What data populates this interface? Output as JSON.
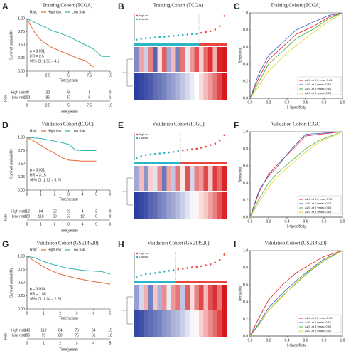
{
  "chart_data": [
    {
      "type": "survival",
      "label": "A",
      "title": "Training Cohort (TCGA)",
      "legend_title": "Risk",
      "xlabel": "Time(years)",
      "ylabel": "Survival probability",
      "annotations": [
        "p < 0.001",
        "HR = 2.5",
        "95% CI: 1.53 – 4.1"
      ],
      "xlim": [
        0,
        10
      ],
      "xticks": [
        0,
        2.5,
        5,
        7.5,
        10
      ],
      "ylim": [
        0,
        1
      ],
      "yticks": [
        {
          "value": 0,
          "label": "0.00"
        },
        {
          "value": 0.25,
          "label": "0.25"
        },
        {
          "value": 0.5,
          "label": "0.50"
        },
        {
          "value": 0.75,
          "label": "0.75"
        },
        {
          "value": 1,
          "label": "1.00"
        }
      ],
      "table_title": "Risk",
      "series": [
        {
          "name": "High risk",
          "color": "#e8663c",
          "x": [
            0,
            0.5,
            1,
            1.5,
            2,
            2.5,
            3,
            4,
            5,
            6,
            7,
            8
          ],
          "values": [
            1,
            0.85,
            0.72,
            0.62,
            0.55,
            0.5,
            0.45,
            0.38,
            0.32,
            0.25,
            0.2,
            0.08
          ],
          "at_risk": [
            88,
            32,
            9,
            1,
            0
          ]
        },
        {
          "name": "Low risk",
          "color": "#2bb5b0",
          "x": [
            0,
            1,
            2,
            3,
            4,
            5,
            6,
            7,
            8,
            9,
            10
          ],
          "values": [
            1,
            0.92,
            0.85,
            0.77,
            0.72,
            0.66,
            0.58,
            0.5,
            0.42,
            0.28,
            0.28
          ],
          "at_risk": [
            202,
            86,
            27,
            6,
            1
          ]
        }
      ]
    },
    {
      "type": "risk-heatmap",
      "label": "B",
      "title": "Training Cohort (TCGA)",
      "ylim": [
        0,
        3.2
      ],
      "zlim": [
        -2,
        2
      ],
      "series": [
        {
          "name": "High risk",
          "color": "#e8463c",
          "x": [
            15,
            16,
            17,
            18,
            19,
            20
          ],
          "values": [
            1.0,
            1.1,
            1.2,
            1.4,
            1.8,
            3.0
          ]
        },
        {
          "name": "Low risk",
          "color": "#2bb5c8",
          "x": [
            1,
            2,
            3,
            4,
            5,
            6,
            7,
            8,
            9,
            10,
            11,
            12,
            13,
            14
          ],
          "values": [
            0.2,
            0.3,
            0.35,
            0.4,
            0.45,
            0.5,
            0.55,
            0.6,
            0.65,
            0.7,
            0.75,
            0.8,
            0.85,
            0.9
          ]
        }
      ],
      "heatmap": [
        [
          -1.2,
          0.8,
          -0.5,
          1.1,
          -1.6,
          0.3,
          1.4,
          -0.9,
          0.6,
          -1.3,
          1.2,
          -0.2,
          0.9,
          1.5,
          0.4,
          1.3,
          1.8,
          0.7,
          1.9,
          2.0
        ],
        [
          -2.0,
          -1.9,
          -1.8,
          -1.7,
          -1.5,
          -1.4,
          -1.3,
          -1.1,
          -1.0,
          -0.8,
          -0.6,
          -0.4,
          -0.2,
          0.0,
          0.3,
          0.6,
          0.9,
          1.2,
          1.6,
          2.0
        ]
      ]
    },
    {
      "type": "roc",
      "label": "C",
      "title": "Training Cohort (TCGA)",
      "xlabel": "1-Specificity",
      "ylabel": "Sensitivity",
      "xlim": [
        0,
        1
      ],
      "xticks": [
        {
          "value": 0,
          "label": "0.0"
        },
        0.2,
        0.4,
        0.6,
        0.8,
        {
          "value": 1,
          "label": "1.0"
        }
      ],
      "ylim": [
        0,
        1
      ],
      "yticks": [
        {
          "value": 0,
          "label": "0.0"
        },
        0.2,
        0.4,
        0.6,
        0.8,
        {
          "value": 1,
          "label": "1.0"
        }
      ],
      "series": [
        {
          "name": "AUC at 0.5 year: 0.66",
          "color": "#e41a1c",
          "x": [
            0,
            0.1,
            0.2,
            0.35,
            0.5,
            0.7,
            0.85,
            1
          ],
          "values": [
            0,
            0.25,
            0.45,
            0.6,
            0.75,
            0.85,
            0.95,
            1
          ]
        },
        {
          "name": "AUC at 1 years: 0.69",
          "color": "#3b5bc8",
          "x": [
            0,
            0.1,
            0.2,
            0.35,
            0.5,
            0.7,
            0.85,
            1
          ],
          "values": [
            0,
            0.3,
            0.5,
            0.65,
            0.8,
            0.9,
            0.97,
            1
          ]
        },
        {
          "name": "AUC at 3 years: 0.64",
          "color": "#4daf4a",
          "x": [
            0,
            0.1,
            0.2,
            0.35,
            0.5,
            0.7,
            0.85,
            1
          ],
          "values": [
            0,
            0.2,
            0.4,
            0.55,
            0.7,
            0.82,
            0.93,
            1
          ]
        },
        {
          "name": "AUC at 5 years: 0.59",
          "color": "#e6d52a",
          "x": [
            0,
            0.1,
            0.2,
            0.35,
            0.5,
            0.7,
            0.85,
            1
          ],
          "values": [
            0,
            0.15,
            0.32,
            0.48,
            0.62,
            0.78,
            0.9,
            1
          ]
        }
      ]
    },
    {
      "type": "survival",
      "label": "D",
      "title": "Validation Cohort (ICGC)",
      "legend_title": "Risk",
      "xlabel": "Time(years)",
      "ylabel": "Survival probability",
      "annotations": [
        "p < 0.001",
        "HR = 3.15",
        "95% CI: 1.72 – 5.76"
      ],
      "xlim": [
        0,
        6
      ],
      "xticks": [
        0,
        1,
        2,
        3,
        4,
        5,
        6
      ],
      "ylim": [
        0,
        1
      ],
      "yticks": [
        {
          "value": 0,
          "label": "0.00"
        },
        {
          "value": 0.25,
          "label": "0.25"
        },
        {
          "value": 0.5,
          "label": "0.50"
        },
        {
          "value": 0.75,
          "label": "0.75"
        },
        {
          "value": 1,
          "label": "1.00"
        }
      ],
      "table_title": "Risk",
      "series": [
        {
          "name": "High risk",
          "color": "#e8663c",
          "x": [
            0,
            0.5,
            1,
            1.5,
            2,
            2.5,
            3,
            4,
            5
          ],
          "values": [
            1,
            0.93,
            0.85,
            0.77,
            0.7,
            0.62,
            0.57,
            0.55,
            0.55
          ],
          "at_risk": [
            112,
            84,
            52,
            23,
            4,
            2,
            0
          ]
        },
        {
          "name": "Low risk",
          "color": "#2bb5b0",
          "x": [
            0,
            1,
            2,
            3,
            3.5,
            4,
            5
          ],
          "values": [
            1,
            0.98,
            0.93,
            0.87,
            0.76,
            0.75,
            0.75
          ],
          "at_risk": [
            120,
            118,
            89,
            53,
            12,
            0,
            0
          ]
        }
      ]
    },
    {
      "type": "risk-heatmap",
      "label": "E",
      "title": "Validation Cohort (ICGC)",
      "ylim": [
        0,
        2.6
      ],
      "zlim": [
        -2,
        2
      ],
      "series": [
        {
          "name": "High risk",
          "color": "#e8463c",
          "x": [
            11,
            12,
            13,
            14,
            15,
            16,
            17,
            18,
            19,
            20
          ],
          "values": [
            0.95,
            1.0,
            1.05,
            1.1,
            1.2,
            1.3,
            1.45,
            1.6,
            1.9,
            2.4
          ]
        },
        {
          "name": "Low risk",
          "color": "#2bb5c8",
          "x": [
            1,
            2,
            3,
            4,
            5,
            6,
            7,
            8,
            9,
            10
          ],
          "values": [
            0.2,
            0.4,
            0.5,
            0.55,
            0.6,
            0.65,
            0.7,
            0.75,
            0.8,
            0.88
          ]
        }
      ],
      "heatmap": [
        [
          -0.9,
          0.6,
          -1.1,
          0.4,
          -0.3,
          1.0,
          -1.4,
          0.8,
          -0.6,
          1.2,
          0.2,
          1.5,
          -0.4,
          1.1,
          0.9,
          1.6,
          0.5,
          1.7,
          1.3,
          1.9
        ],
        [
          -2.0,
          -1.9,
          -1.8,
          -1.6,
          -1.5,
          -1.3,
          -1.2,
          -1.0,
          -0.9,
          -0.7,
          -0.5,
          -0.3,
          -0.1,
          0.1,
          0.3,
          0.5,
          0.8,
          1.1,
          1.5,
          1.9
        ]
      ]
    },
    {
      "type": "roc",
      "label": "F",
      "title": "Validation Cohort   ICGC",
      "xlabel": "1-Specificity",
      "ylabel": "Sensitivity",
      "xlim": [
        0,
        1
      ],
      "xticks": [
        {
          "value": 0,
          "label": "0.0"
        },
        0.2,
        0.4,
        0.6,
        0.8,
        {
          "value": 1,
          "label": "1.0"
        }
      ],
      "ylim": [
        0,
        1
      ],
      "yticks": [
        {
          "value": 0,
          "label": "0.0"
        },
        0.2,
        0.4,
        0.6,
        0.8,
        {
          "value": 1,
          "label": "1.0"
        }
      ],
      "series": [
        {
          "name": "AUC at 0.5 year: 0.72",
          "color": "#e41a1c",
          "x": [
            0,
            0.1,
            0.2,
            0.3,
            0.45,
            0.6,
            0.75,
            1
          ],
          "values": [
            0,
            0.3,
            0.5,
            0.62,
            0.78,
            0.95,
            0.97,
            1
          ]
        },
        {
          "name": "AUC at 1 years: 0.72",
          "color": "#3b5bc8",
          "x": [
            0,
            0.1,
            0.2,
            0.3,
            0.45,
            0.6,
            0.75,
            1
          ],
          "values": [
            0,
            0.32,
            0.48,
            0.6,
            0.8,
            0.97,
            0.98,
            1
          ]
        },
        {
          "name": "AUC at 3 years: 0.65",
          "color": "#4daf4a",
          "x": [
            0,
            0.1,
            0.2,
            0.3,
            0.45,
            0.6,
            0.75,
            1
          ],
          "values": [
            0,
            0.22,
            0.4,
            0.52,
            0.66,
            0.8,
            0.9,
            1
          ]
        },
        {
          "name": "AUC at 5 years: 0.63",
          "color": "#e6d52a",
          "x": [
            0,
            0.1,
            0.2,
            0.3,
            0.45,
            0.6,
            0.75,
            1
          ],
          "values": [
            0,
            0.18,
            0.35,
            0.48,
            0.62,
            0.76,
            0.88,
            1
          ]
        }
      ]
    },
    {
      "type": "survival",
      "label": "G",
      "title": "Validation Cohort (GSE14520)",
      "legend_title": "Risk",
      "xlabel": "Time(years)",
      "ylabel": "Survival probability",
      "annotations": [
        "p = 0.004",
        "HR = 1.85",
        "95% CI: 1.24 – 2.76"
      ],
      "xlim": [
        0,
        5
      ],
      "xticks": [
        0,
        1,
        2,
        3,
        4,
        5
      ],
      "ylim": [
        0,
        1
      ],
      "yticks": [
        {
          "value": 0,
          "label": "0.00"
        },
        {
          "value": 0.25,
          "label": "0.25"
        },
        {
          "value": 0.5,
          "label": "0.50"
        },
        {
          "value": 0.75,
          "label": "0.75"
        },
        {
          "value": 1,
          "label": "1.00"
        }
      ],
      "table_title": "Risk",
      "series": [
        {
          "name": "High risk",
          "color": "#e8663c",
          "x": [
            0,
            0.5,
            1,
            1.5,
            2,
            2.5,
            3,
            3.5,
            4,
            4.5,
            5
          ],
          "values": [
            1,
            0.9,
            0.8,
            0.72,
            0.66,
            0.62,
            0.58,
            0.55,
            0.52,
            0.5,
            0.47
          ],
          "at_risk": [
            143,
            110,
            84,
            76,
            64,
            15
          ]
        },
        {
          "name": "Low risk",
          "color": "#2bb5b0",
          "x": [
            0,
            0.5,
            1,
            1.5,
            2,
            2.5,
            3,
            3.5,
            4,
            4.5,
            5
          ],
          "values": [
            1,
            0.97,
            0.9,
            0.85,
            0.81,
            0.77,
            0.75,
            0.73,
            0.72,
            0.71,
            0.66
          ],
          "at_risk": [
            106,
            99,
            80,
            75,
            61,
            18
          ]
        }
      ]
    },
    {
      "type": "risk-heatmap",
      "label": "H",
      "title": "Validation Cohort (GSE14520)",
      "ylim": [
        0,
        2.2
      ],
      "zlim": [
        -2,
        2
      ],
      "series": [
        {
          "name": "High risk",
          "color": "#e8463c",
          "x": [
            10,
            11,
            12,
            13,
            14,
            15,
            16,
            17,
            18,
            19,
            20
          ],
          "values": [
            0.8,
            0.85,
            0.9,
            0.95,
            1.0,
            1.05,
            1.12,
            1.2,
            1.35,
            1.55,
            2.0
          ]
        },
        {
          "name": "Low risk",
          "color": "#2bb5c8",
          "x": [
            1,
            2,
            3,
            4,
            5,
            6,
            7,
            8,
            9
          ],
          "values": [
            0.15,
            0.3,
            0.4,
            0.45,
            0.5,
            0.55,
            0.62,
            0.68,
            0.74
          ]
        }
      ],
      "heatmap": [
        [
          -1.0,
          -0.4,
          0.7,
          -1.3,
          0.5,
          -0.8,
          1.0,
          -0.2,
          0.9,
          1.2,
          -0.6,
          1.4,
          0.3,
          1.1,
          1.6,
          0.6,
          1.5,
          1.8,
          1.2,
          2.0
        ],
        [
          -1.9,
          -1.8,
          -1.6,
          -1.5,
          -1.4,
          -1.3,
          -1.1,
          -1.0,
          -0.8,
          -0.7,
          -0.5,
          -0.3,
          -0.1,
          0.1,
          0.4,
          0.7,
          1.0,
          1.3,
          1.6,
          2.0
        ]
      ]
    },
    {
      "type": "roc",
      "label": "I",
      "title": "Validation Cohort (GSE14520)",
      "xlabel": "1-Specificity",
      "ylabel": "Sensitivity",
      "xlim": [
        0,
        1
      ],
      "xticks": [
        {
          "value": 0,
          "label": "0.0"
        },
        0.2,
        0.4,
        0.6,
        0.8,
        {
          "value": 1,
          "label": "1.0"
        }
      ],
      "ylim": [
        0,
        1
      ],
      "yticks": [
        {
          "value": 0,
          "label": "0.0"
        },
        0.2,
        0.4,
        0.6,
        0.8,
        {
          "value": 1,
          "label": "1.0"
        }
      ],
      "series": [
        {
          "name": "AUC at 0.5 year: 0.66",
          "color": "#e41a1c",
          "x": [
            0,
            0.1,
            0.2,
            0.35,
            0.5,
            0.65,
            0.8,
            1
          ],
          "values": [
            0,
            0.22,
            0.42,
            0.6,
            0.74,
            0.84,
            0.93,
            1
          ]
        },
        {
          "name": "AUC at 1 years: 0.61",
          "color": "#3b5bc8",
          "x": [
            0,
            0.1,
            0.2,
            0.35,
            0.5,
            0.65,
            0.8,
            1
          ],
          "values": [
            0,
            0.16,
            0.33,
            0.5,
            0.65,
            0.78,
            0.9,
            1
          ]
        },
        {
          "name": "AUC at 3 years: 0.59",
          "color": "#4daf4a",
          "x": [
            0,
            0.1,
            0.2,
            0.35,
            0.5,
            0.65,
            0.8,
            1
          ],
          "values": [
            0,
            0.14,
            0.3,
            0.47,
            0.62,
            0.76,
            0.88,
            1
          ]
        },
        {
          "name": "AUC at 5 years: 0.59",
          "color": "#e6d52a",
          "x": [
            0,
            0.1,
            0.2,
            0.35,
            0.5,
            0.65,
            0.8,
            1
          ],
          "values": [
            0,
            0.13,
            0.3,
            0.46,
            0.63,
            0.77,
            0.89,
            1
          ]
        }
      ]
    }
  ]
}
